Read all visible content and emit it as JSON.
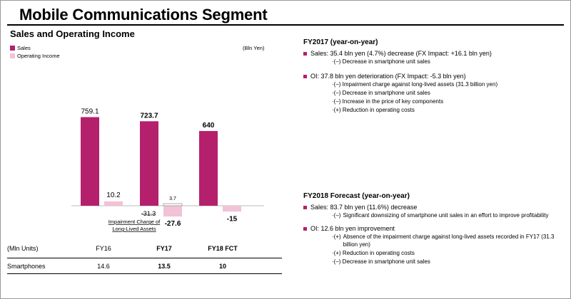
{
  "page_title": "Mobile Communications Segment",
  "section_title": "Sales and Operating Income",
  "unit_label": "(Bln Yen)",
  "colors": {
    "sales": "#b5206d",
    "oi": "#f2c2d6"
  },
  "legend": {
    "sales": "Sales",
    "oi": "Operating Income"
  },
  "chart_data": {
    "type": "bar",
    "categories": [
      "FY16",
      "FY17",
      "FY18 FCT"
    ],
    "series": [
      {
        "name": "Sales",
        "values": [
          759.1,
          723.7,
          640
        ],
        "labels": [
          "759.1",
          "723.7",
          "640"
        ]
      },
      {
        "name": "Operating Income",
        "values": [
          10.2,
          -27.6,
          -15
        ],
        "labels": [
          "10.2",
          "-27.6",
          "-15"
        ]
      }
    ],
    "annotations": {
      "fy17_oi_excl_impairment": "3.7",
      "impairment_value": "-31.3",
      "impairment_label_line1": "Impairment Charge of",
      "impairment_label_line2": "Long-Lived Assets"
    },
    "ylim": [
      -40,
      900
    ]
  },
  "table": {
    "header": [
      "(Mln Units)",
      "FY16",
      "FY17",
      "FY18 FCT"
    ],
    "rows": [
      [
        "Smartphones",
        "14.6",
        "13.5",
        "10"
      ]
    ]
  },
  "fy2017": {
    "heading": "FY2017 (year-on-year)",
    "sales_line": "Sales: 35.4 bln yen (4.7%) decrease (FX Impact: +16.1 bln yen)",
    "sales_subs": [
      "·(–) Decrease in smartphone unit sales"
    ],
    "oi_line": "OI: 37.8 bln yen deterioration (FX Impact: -5.3 bln yen)",
    "oi_subs": [
      "·(–) Impairment charge against long-lived assets (31.3 billion yen)",
      "·(–) Decrease in smartphone unit sales",
      "·(–) Increase in the price of key components",
      "·(+) Reduction in operating costs"
    ]
  },
  "fy2018": {
    "heading": "FY2018 Forecast (year-on-year)",
    "sales_line": "Sales: 83.7 bln yen (11.6%) decrease",
    "sales_sub_prefix": "·(–)",
    "sales_sub_text": "Significant downsizing of smartphone unit sales in an effort to improve profitability",
    "oi_line": "OI: 12.6 bln yen improvement",
    "oi_sub1_prefix": "·(+)",
    "oi_sub1_text": "Absence of the impairment charge against long-lived assets recorded in FY17 (31.3 billion yen)",
    "oi_subs": [
      "·(+) Reduction in operating costs",
      "·(–) Decrease in smartphone unit sales"
    ]
  }
}
